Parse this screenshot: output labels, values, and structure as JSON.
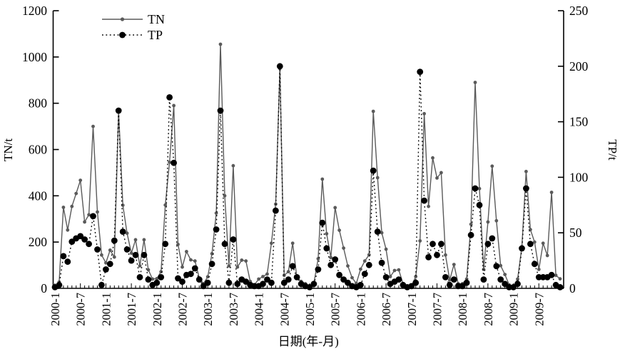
{
  "chart_data": {
    "type": "line",
    "title": "",
    "xlabel": "日期(年-月)",
    "ylabel_left": "TN/t",
    "ylabel_right": "TP/t",
    "x_start": "2000-1",
    "n_months": 120,
    "xtick_labels": [
      "2000-1",
      "2000-7",
      "2001-1",
      "2001-7",
      "2002-1",
      "2002-7",
      "2003-1",
      "2003-7",
      "2004-1",
      "2004-7",
      "2005-1",
      "2005-7",
      "2006-1",
      "2006-7",
      "2007-1",
      "2007-7",
      "2008-1",
      "2008-7",
      "2009-1",
      "2009-7"
    ],
    "xtick_month_step": 6,
    "yaxis_left": {
      "min": 0,
      "max": 1200,
      "step": 200,
      "tick_labels": [
        "0",
        "200",
        "400",
        "600",
        "800",
        "1000",
        "1200"
      ]
    },
    "yaxis_right": {
      "min": 0,
      "max": 250,
      "step": 50,
      "tick_labels": [
        "0",
        "50",
        "100",
        "150",
        "200",
        "250"
      ]
    },
    "grid": false,
    "legend_position": "top-left-inside",
    "series": [
      {
        "name": "TN",
        "axis": "left",
        "color": "#5a5a5a",
        "line_style": "solid",
        "marker": "small-circle",
        "values": [
          8,
          27,
          350,
          252,
          354,
          410,
          467,
          287,
          318,
          700,
          330,
          144,
          110,
          165,
          135,
          765,
          359,
          238,
          152,
          210,
          97,
          210,
          80,
          40,
          42,
          72,
          360,
          545,
          790,
          190,
          92,
          159,
          123,
          118,
          45,
          20,
          50,
          150,
          325,
          1055,
          400,
          97,
          530,
          92,
          122,
          118,
          30,
          15,
          40,
          51,
          62,
          195,
          364,
          950,
          56,
          72,
          195,
          46,
          30,
          20,
          5,
          21,
          128,
          472,
          236,
          133,
          349,
          251,
          174,
          97,
          46,
          21,
          83,
          118,
          145,
          765,
          478,
          240,
          169,
          51,
          77,
          80,
          20,
          8,
          10,
          51,
          205,
          755,
          354,
          564,
          477,
          500,
          144,
          36,
          103,
          20,
          20,
          40,
          277,
          890,
          431,
          82,
          287,
          528,
          292,
          98,
          60,
          15,
          10,
          40,
          180,
          505,
          254,
          200,
          82,
          195,
          142,
          415,
          56,
          41
        ]
      },
      {
        "name": "TP",
        "axis": "right",
        "color": "#000000",
        "line_style": "dotted",
        "marker": "large-circle",
        "values": [
          1,
          3,
          29,
          24,
          42,
          45,
          47,
          44,
          40,
          65,
          35,
          3,
          17,
          22,
          43,
          160,
          51,
          35,
          25,
          30,
          10,
          30,
          8,
          3,
          5,
          10,
          40,
          172,
          113,
          9,
          6,
          12,
          13,
          18,
          8,
          2,
          5,
          22,
          53,
          160,
          40,
          5,
          44,
          4,
          8,
          6,
          3,
          2,
          2,
          4,
          8,
          5,
          70,
          200,
          5,
          8,
          20,
          10,
          4,
          2,
          1,
          4,
          17,
          59,
          36,
          21,
          26,
          12,
          8,
          5,
          2,
          1,
          3,
          13,
          21,
          106,
          51,
          23,
          10,
          4,
          6,
          8,
          3,
          1,
          2,
          5,
          195,
          79,
          28,
          40,
          30,
          40,
          10,
          3,
          8,
          2,
          2,
          5,
          48,
          90,
          75,
          8,
          40,
          45,
          20,
          8,
          4,
          1,
          1,
          4,
          36,
          90,
          40,
          22,
          10,
          10,
          10,
          12,
          3,
          1
        ]
      }
    ]
  }
}
